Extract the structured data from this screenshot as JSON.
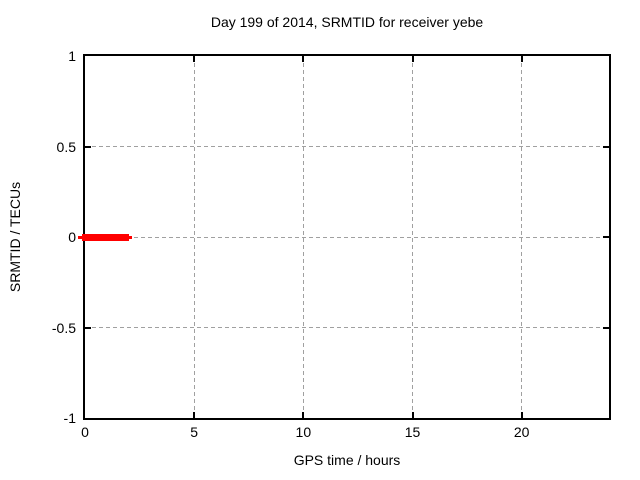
{
  "title": "Day 199 of 2014, SRMTID for receiver yebe",
  "axes": {
    "xlabel": "GPS time / hours",
    "ylabel": "SRMTID / TECUs",
    "x_tick_labels": [
      "0",
      "5",
      "10",
      "15",
      "20"
    ],
    "y_tick_labels": [
      "-1",
      "-0.5",
      "0",
      "0.5",
      "1"
    ]
  },
  "chart_data": {
    "type": "line",
    "title": "Day 199 of 2014, SRMTID for receiver yebe",
    "xlabel": "GPS time / hours",
    "ylabel": "SRMTID / TECUs",
    "xlim": [
      0,
      24
    ],
    "ylim": [
      -1,
      1
    ],
    "x_ticks": [
      0,
      5,
      10,
      15,
      20
    ],
    "y_ticks": [
      -1,
      -0.5,
      0,
      0.5,
      1
    ],
    "grid": true,
    "grid_style": "dashed",
    "legend": false,
    "series": [
      {
        "name": "SRMTID",
        "color": "#ff0000",
        "style": "thick horizontal segment",
        "x_start": 0,
        "x_end": 2.1,
        "y": 0
      }
    ]
  },
  "colors": {
    "series_red": "#ff0000",
    "grid": "#a0a0a0",
    "border": "#000000",
    "background": "#ffffff",
    "text": "#000000"
  }
}
